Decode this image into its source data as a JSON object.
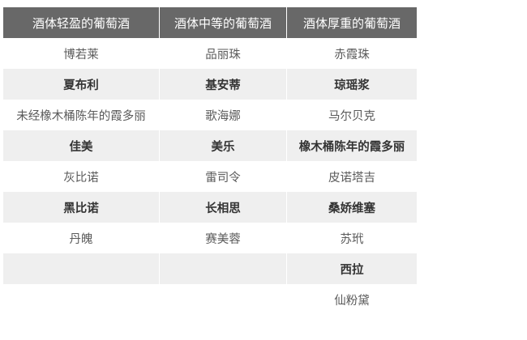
{
  "table": {
    "headers": [
      "酒体轻盈的葡萄酒",
      "酒体中等的葡萄酒",
      "酒体厚重的葡萄酒"
    ],
    "rows": [
      [
        "博若莱",
        "品丽珠",
        "赤霞珠"
      ],
      [
        "夏布利",
        "基安蒂",
        "琼瑶浆"
      ],
      [
        "未经橡木桶陈年的霞多丽",
        "歌海娜",
        "马尔贝克"
      ],
      [
        "佳美",
        "美乐",
        "橡木桶陈年的霞多丽"
      ],
      [
        "灰比诺",
        "雷司令",
        "皮诺塔吉"
      ],
      [
        "黑比诺",
        "长相思",
        "桑娇维塞"
      ],
      [
        "丹魄",
        "赛美蓉",
        "苏玳"
      ],
      [
        "",
        "",
        "西拉"
      ],
      [
        "",
        "",
        "仙粉黛"
      ]
    ]
  },
  "colors": {
    "header_bg": "#686868",
    "alt_row_bg": "#efefef"
  }
}
